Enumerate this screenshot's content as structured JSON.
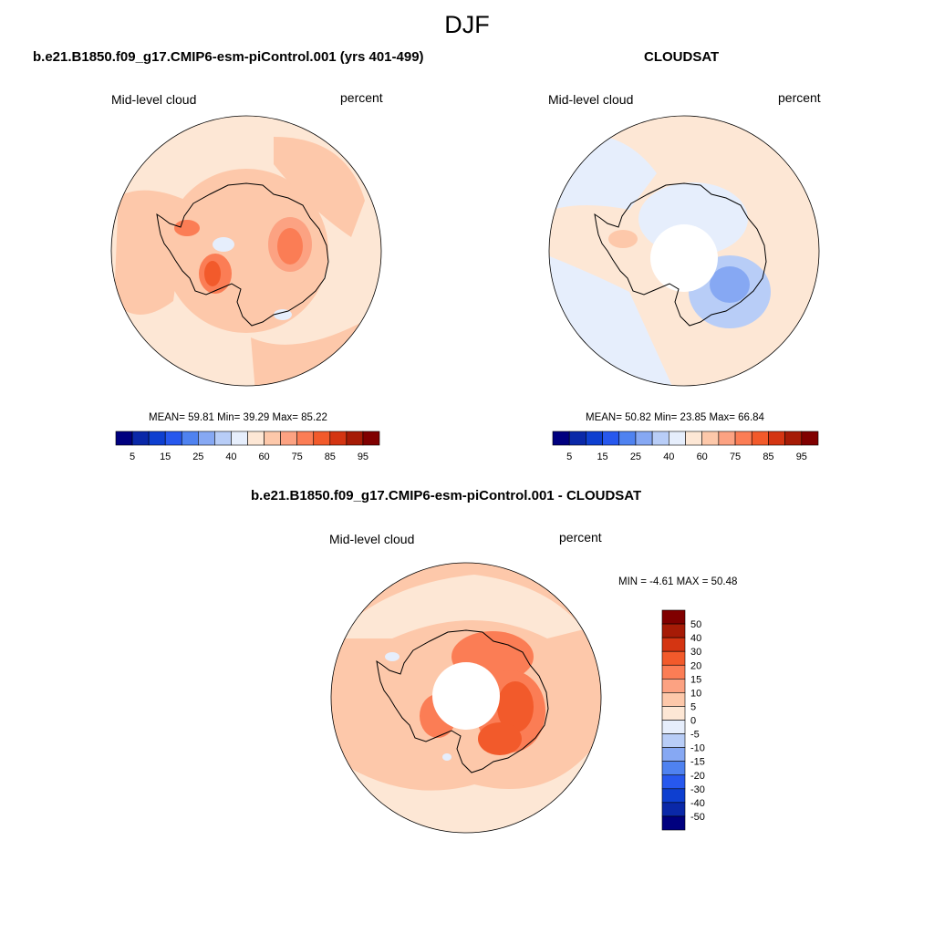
{
  "figure": {
    "title": "DJF"
  },
  "panels": [
    {
      "title": "b.e21.B1850.f09_g17.CMIP6-esm-piControl.001 (yrs 401-499)",
      "left_label": "Mid-level cloud",
      "right_label": "percent",
      "stats": "MEAN=  59.81  Min=  39.29  Max=  85.22"
    },
    {
      "title": "CLOUDSAT",
      "left_label": "Mid-level cloud",
      "right_label": "percent",
      "stats": "MEAN=  50.82  Min=  23.85  Max=  66.84"
    },
    {
      "title": "b.e21.B1850.f09_g17.CMIP6-esm-piControl.001 - CLOUDSAT",
      "left_label": "Mid-level cloud",
      "right_label": "percent",
      "stats": "MIN =  -4.61 MAX =  50.48"
    }
  ],
  "colorbar_main": {
    "colors": [
      "#00007f",
      "#0a28a8",
      "#0e3fd0",
      "#2758ee",
      "#4f82f0",
      "#86a8f3",
      "#b8cdf7",
      "#e6eefc",
      "#fde7d5",
      "#fdc8aa",
      "#fca282",
      "#fb7d55",
      "#f25a2b",
      "#d43512",
      "#a61b06",
      "#800000"
    ],
    "tick_labels": [
      "5",
      "15",
      "25",
      "40",
      "60",
      "75",
      "85",
      "95"
    ]
  },
  "colorbar_diff": {
    "colors": [
      "#800000",
      "#a61b06",
      "#d43512",
      "#f25a2b",
      "#fb7d55",
      "#fca282",
      "#fdc8aa",
      "#fde7d5",
      "#e6eefc",
      "#b8cdf7",
      "#86a8f3",
      "#4f82f0",
      "#2758ee",
      "#0e3fd0",
      "#0a28a8",
      "#00007f"
    ],
    "tick_labels": [
      "50",
      "40",
      "30",
      "20",
      "15",
      "10",
      "5",
      "0",
      "-5",
      "-10",
      "-15",
      "-20",
      "-30",
      "-40",
      "-50"
    ]
  },
  "colors": {
    "ocean_background_model": "#fde7d5",
    "ocean_background_cloudsat": "#fde7d5",
    "diff_background": "#fdc8aa"
  }
}
